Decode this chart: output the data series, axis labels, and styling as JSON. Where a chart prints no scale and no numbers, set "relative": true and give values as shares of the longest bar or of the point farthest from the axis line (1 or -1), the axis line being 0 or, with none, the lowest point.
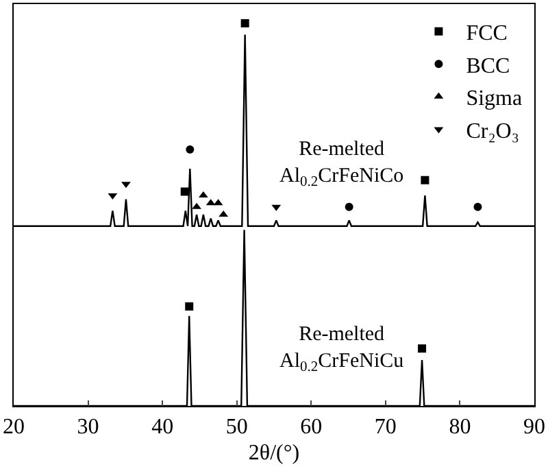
{
  "chart_data": {
    "type": "line",
    "relative": true,
    "xlabel": "2θ/(°)",
    "xlim": [
      20,
      90
    ],
    "xticks": [
      20,
      30,
      40,
      50,
      60,
      70,
      80,
      90
    ],
    "tick_labels": "x",
    "grid": false,
    "legend": "top right",
    "line_style": "solid",
    "series": [
      {
        "color": "#000000",
        "marker": "none",
        "x": [
          20,
          33.0,
          33.3,
          33.6,
          34.8,
          35.1,
          35.4,
          42.8,
          43.1,
          43.4,
          43.7,
          44.0,
          44.3,
          44.6,
          44.9,
          45.2,
          45.5,
          45.8,
          46.2,
          46.5,
          46.8,
          47.2,
          47.5,
          47.8,
          50.7,
          51.1,
          51.5,
          55.0,
          55.3,
          55.6,
          64.8,
          65.1,
          65.4,
          75.0,
          75.3,
          75.6,
          82.1,
          82.4,
          82.7,
          90
        ],
        "values": [
          0.47,
          0.47,
          0.51,
          0.47,
          0.47,
          0.54,
          0.47,
          0.47,
          0.51,
          0.47,
          0.62,
          0.47,
          0.47,
          0.5,
          0.47,
          0.47,
          0.5,
          0.47,
          0.47,
          0.49,
          0.47,
          0.47,
          0.485,
          0.47,
          0.47,
          0.97,
          0.47,
          0.47,
          0.485,
          0.47,
          0.47,
          0.485,
          0.47,
          0.47,
          0.55,
          0.47,
          0.47,
          0.48,
          0.47,
          0.47
        ]
      },
      {
        "color": "#000000",
        "marker": "none",
        "x": [
          20,
          43.3,
          43.6,
          43.9,
          50.6,
          51.0,
          51.4,
          74.6,
          74.9,
          75.2,
          90
        ],
        "values": [
          0,
          0,
          0.235,
          0,
          0,
          0.46,
          0,
          0,
          0.12,
          0,
          0
        ]
      },
      {
        "type": "scatter",
        "name": "FCC",
        "color": "#000000",
        "marker": "square",
        "x": [
          43.0,
          51.1,
          75.3,
          43.6,
          74.9
        ],
        "values": [
          0.56,
          1.0,
          0.59,
          0.26,
          0.15
        ]
      },
      {
        "type": "scatter",
        "name": "BCC",
        "color": "#000000",
        "marker": "circle",
        "x": [
          43.7,
          65.1,
          82.4
        ],
        "values": [
          0.67,
          0.52,
          0.52
        ]
      },
      {
        "type": "scatter",
        "name": "Sigma",
        "color": "#000000",
        "marker": "triangle",
        "x": [
          44.6,
          45.5,
          46.5,
          47.5,
          48.2
        ],
        "values": [
          0.52,
          0.55,
          0.53,
          0.53,
          0.5
        ]
      },
      {
        "type": "scatter",
        "name": "Cr₂O₃",
        "color": "#000000",
        "marker": "triangle-down",
        "x": [
          33.3,
          35.1,
          55.3
        ],
        "values": [
          0.55,
          0.58,
          0.52
        ]
      }
    ],
    "annotations": [
      "Re-melted\nAl$_{0.2}$CrFeNiCo",
      "Re-melted\nAl$_{0.2}$CrFeNiCu"
    ]
  }
}
